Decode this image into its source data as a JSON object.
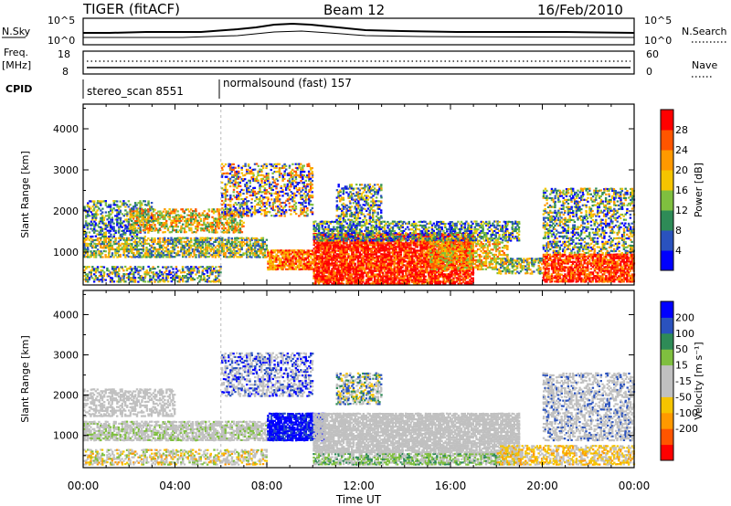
{
  "header": {
    "title": "TIGER (fitACF)",
    "beam": "Beam 12",
    "date": "16/Feb/2010"
  },
  "panels": {
    "nsky_label": "N.Sky",
    "nsky_ticks": [
      "10^5",
      "10^0"
    ],
    "nsearch_label": "N.Search",
    "nsearch_ticks": [
      "10^5",
      "10^0"
    ],
    "freq_label_1": "Freq.",
    "freq_label_2": "[MHz]",
    "freq_ticks": [
      "18",
      "8"
    ],
    "nave_label": "Nave",
    "nave_ticks": [
      "60",
      "0"
    ],
    "cpid_label": "CPID",
    "cpid_segments": [
      "stereo_scan 8551",
      "normalsound (fast) 157"
    ]
  },
  "colors": {
    "power": [
      "#0000ff",
      "#2a52be",
      "#2e8b57",
      "#7fbf3f",
      "#f5c400",
      "#ff9900",
      "#ff5500",
      "#ff0000"
    ],
    "velocity": [
      "#0000ff",
      "#2a52be",
      "#2e8b57",
      "#7fbf3f",
      "#c0c0c0",
      "#c0c0c0",
      "#f5c400",
      "#ff9900",
      "#ff5500",
      "#ff0000"
    ]
  },
  "chart_data": [
    {
      "type": "heatmap",
      "title": "",
      "xlabel": "Time UT",
      "ylabel": "Slant Range [km]",
      "x_ticks": [
        "00:00",
        "04:00",
        "08:00",
        "12:00",
        "16:00",
        "20:00",
        "00:00"
      ],
      "y_ticks": [
        "1000",
        "2000",
        "3000",
        "4000"
      ],
      "ylim": [
        200,
        4600
      ],
      "colorbar_label": "Power [dB]",
      "colorbar_ticks": [
        "4",
        "8",
        "12",
        "16",
        "20",
        "24",
        "28"
      ]
    },
    {
      "type": "heatmap",
      "title": "",
      "xlabel": "Time UT",
      "ylabel": "Slant Range [km]",
      "x_ticks": [
        "00:00",
        "04:00",
        "08:00",
        "12:00",
        "16:00",
        "20:00",
        "00:00"
      ],
      "y_ticks": [
        "1000",
        "2000",
        "3000",
        "4000"
      ],
      "ylim": [
        200,
        4600
      ],
      "colorbar_label": "Velocity [m s⁻¹]",
      "colorbar_ticks": [
        "200",
        "100",
        "50",
        "15",
        "-15",
        "-50",
        "-100",
        "-200"
      ]
    }
  ]
}
